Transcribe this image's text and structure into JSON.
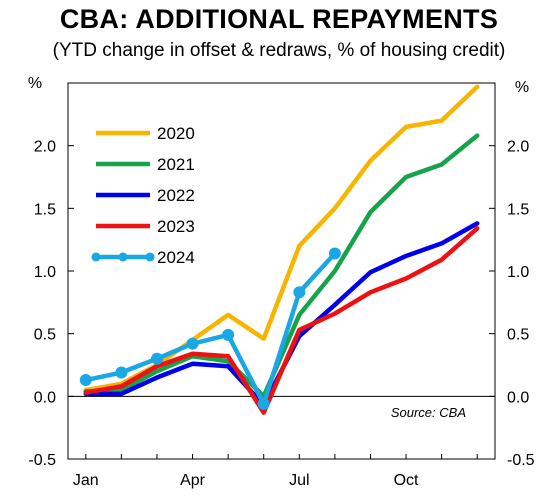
{
  "title": "CBA: ADDITIONAL REPAYMENTS",
  "subtitle": "(YTD change in offset & redraws, % of housing credit)",
  "left_unit": "%",
  "right_unit": "%",
  "source": "Source: CBA",
  "chart_data": {
    "type": "line",
    "title": "CBA: ADDITIONAL REPAYMENTS",
    "subtitle": "(YTD change in offset & redraws, % of housing credit)",
    "ylabel": "%",
    "ylim": [
      -0.5,
      2.5
    ],
    "yticks": [
      -0.5,
      0.0,
      0.5,
      1.0,
      1.5,
      2.0
    ],
    "ytick_labels": [
      "-0.5",
      "0.0",
      "0.5",
      "1.0",
      "1.5",
      "2.0"
    ],
    "x": [
      1,
      2,
      3,
      4,
      5,
      6,
      7,
      8,
      9,
      10,
      11,
      12
    ],
    "xlim": [
      0.5,
      12.5
    ],
    "xticks": [
      1,
      4,
      7,
      10
    ],
    "xtick_labels": [
      "Jan",
      "Apr",
      "Jul",
      "Oct"
    ],
    "grid": false,
    "legend_position": "top-left",
    "series": [
      {
        "name": "2020",
        "color": "#F7B500",
        "markers": false,
        "values": [
          0.05,
          0.1,
          0.25,
          0.45,
          0.65,
          0.46,
          1.2,
          1.5,
          1.88,
          2.15,
          2.2,
          2.47
        ]
      },
      {
        "name": "2021",
        "color": "#16A34A",
        "markers": false,
        "values": [
          0.04,
          0.05,
          0.2,
          0.32,
          0.28,
          0.0,
          0.65,
          1.0,
          1.47,
          1.75,
          1.85,
          2.08
        ]
      },
      {
        "name": "2022",
        "color": "#0000EE",
        "markers": false,
        "values": [
          0.02,
          0.02,
          0.15,
          0.26,
          0.24,
          -0.07,
          0.48,
          0.73,
          0.99,
          1.12,
          1.22,
          1.38
        ]
      },
      {
        "name": "2023",
        "color": "#EE1111",
        "markers": false,
        "values": [
          0.03,
          0.08,
          0.24,
          0.34,
          0.32,
          -0.13,
          0.53,
          0.66,
          0.83,
          0.94,
          1.09,
          1.34
        ]
      },
      {
        "name": "2024",
        "color": "#1AA7E5",
        "markers": true,
        "values": [
          0.13,
          0.19,
          0.3,
          0.42,
          0.49,
          -0.06,
          0.83,
          1.14,
          null,
          null,
          null,
          null
        ]
      }
    ]
  }
}
